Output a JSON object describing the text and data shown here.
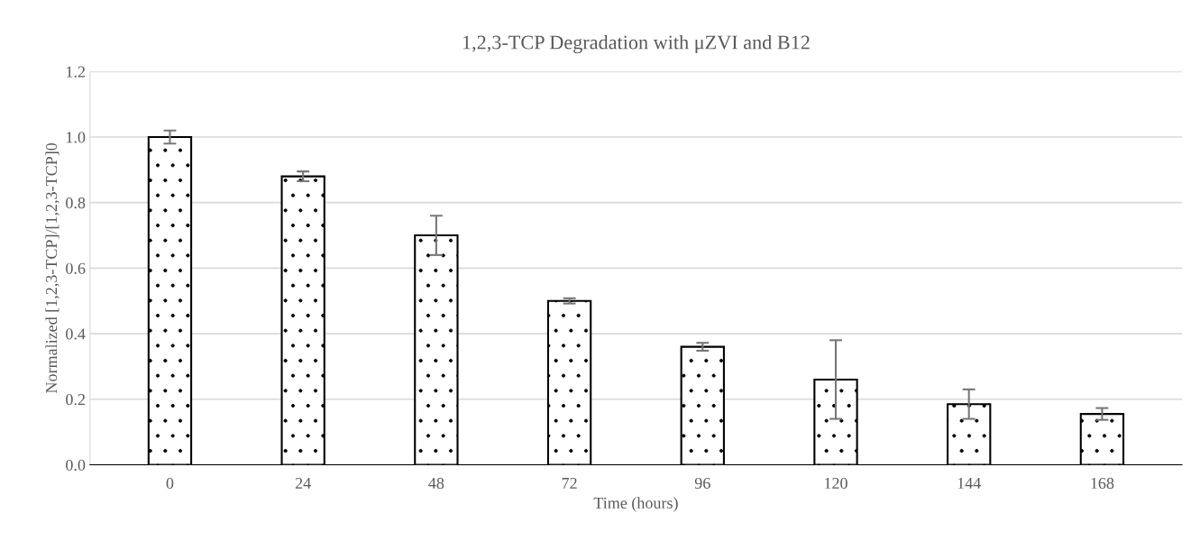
{
  "chart_data": {
    "type": "bar",
    "title": "1,2,3-TCP Degradation with μZVI and B12",
    "xlabel": "Time (hours)",
    "ylabel": "Normalized [1,2,3-TCP]/[1,2,3-TCP]0",
    "categories": [
      "0",
      "24",
      "48",
      "72",
      "96",
      "120",
      "144",
      "168"
    ],
    "values": [
      1.0,
      0.88,
      0.7,
      0.5,
      0.36,
      0.26,
      0.185,
      0.155
    ],
    "errors": [
      0.02,
      0.015,
      0.06,
      0.008,
      0.012,
      0.12,
      0.045,
      0.018
    ],
    "color": "#000000",
    "ylim": [
      0,
      1.2
    ],
    "yticks": [
      {
        "value": 0,
        "label": "0.0"
      },
      {
        "value": 0.2,
        "label": "0.2"
      },
      {
        "value": 0.4,
        "label": "0.4"
      },
      {
        "value": 0.6,
        "label": "0.6"
      },
      {
        "value": 0.8,
        "label": "0.8"
      },
      {
        "value": 1.0,
        "label": "1.0"
      },
      {
        "value": 1.2,
        "label": "1.2"
      }
    ],
    "grid": "y"
  }
}
